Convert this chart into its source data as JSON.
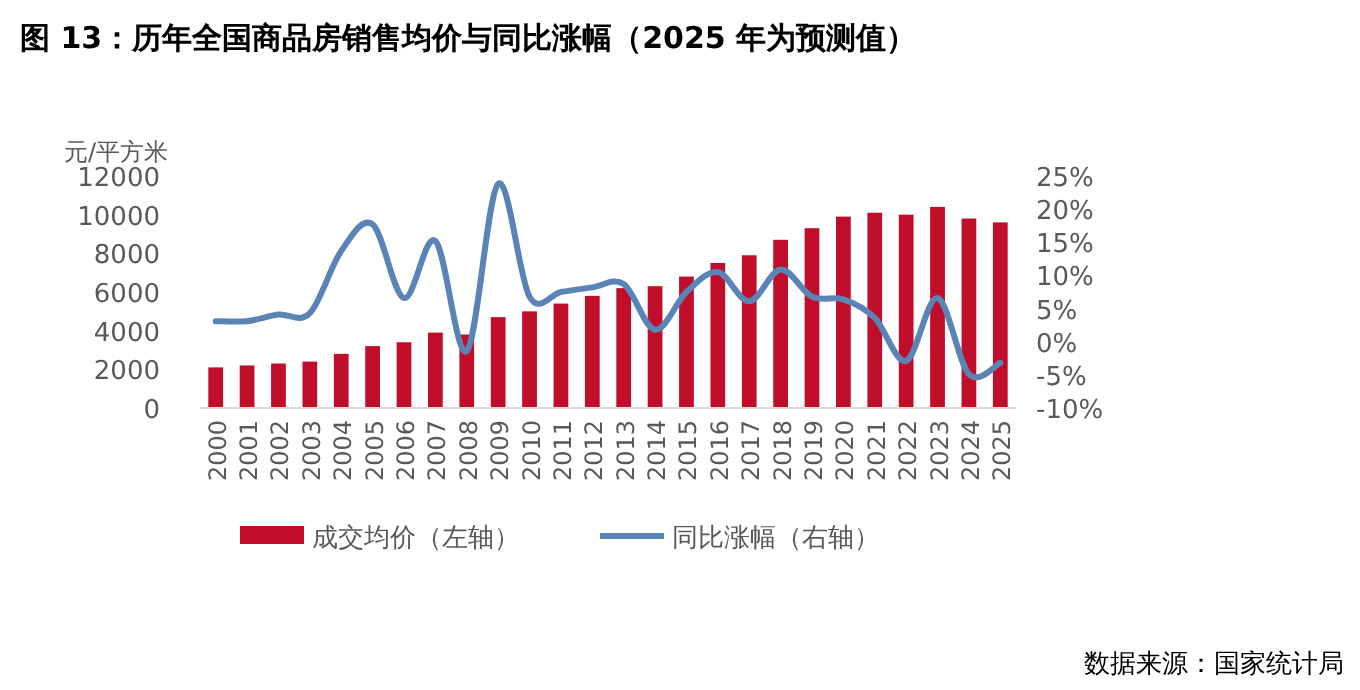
{
  "chart_data": {
    "type": "bar",
    "title": "图 13：历年全国商品房销售均价与同比涨幅（2025 年为预测值）",
    "ylabel": "元/平方米",
    "categories": [
      "2000",
      "2001",
      "2002",
      "2003",
      "2004",
      "2005",
      "2006",
      "2007",
      "2008",
      "2009",
      "2010",
      "2011",
      "2012",
      "2013",
      "2014",
      "2015",
      "2016",
      "2017",
      "2018",
      "2019",
      "2020",
      "2021",
      "2022",
      "2023",
      "2024",
      "2025"
    ],
    "series": [
      {
        "name": "成交均价（左轴）",
        "color": "#c00e2a",
        "values": [
          2100,
          2200,
          2300,
          2400,
          2800,
          3200,
          3400,
          3900,
          3800,
          4700,
          5000,
          5400,
          5800,
          6200,
          6300,
          6800,
          7500,
          7900,
          8700,
          9300,
          9900,
          10100,
          10000,
          10400,
          9800,
          9600
        ]
      },
      {
        "name": "同比涨幅（右轴）",
        "type": "line",
        "axis": "y2",
        "color": "#5a83b6",
        "values": [
          3.1,
          3.1,
          4.1,
          4.3,
          13.7,
          17.7,
          6.6,
          15.2,
          -1.4,
          23.8,
          6.8,
          7.5,
          8.2,
          8.7,
          1.8,
          7.5,
          10.5,
          6.1,
          10.9,
          6.8,
          6.4,
          3.6,
          -2.9,
          6.6,
          -4.9,
          -3.2
        ]
      }
    ],
    "ylim": [
      0,
      12000
    ],
    "yticks": [
      0,
      2000,
      4000,
      6000,
      8000,
      10000,
      12000
    ],
    "y2lim": [
      -10,
      25
    ],
    "y2ticks": [
      {
        "value": -10,
        "label": "-10%"
      },
      {
        "value": -5,
        "label": "-5%"
      },
      {
        "value": 0,
        "label": "0%"
      },
      {
        "value": 5,
        "label": "5%"
      },
      {
        "value": 10,
        "label": "10%"
      },
      {
        "value": 15,
        "label": "15%"
      },
      {
        "value": 20,
        "label": "20%"
      },
      {
        "value": 25,
        "label": "25%"
      }
    ],
    "grid": false,
    "legend": "bottom",
    "annotations": [
      "数据来源：国家统计局"
    ]
  }
}
